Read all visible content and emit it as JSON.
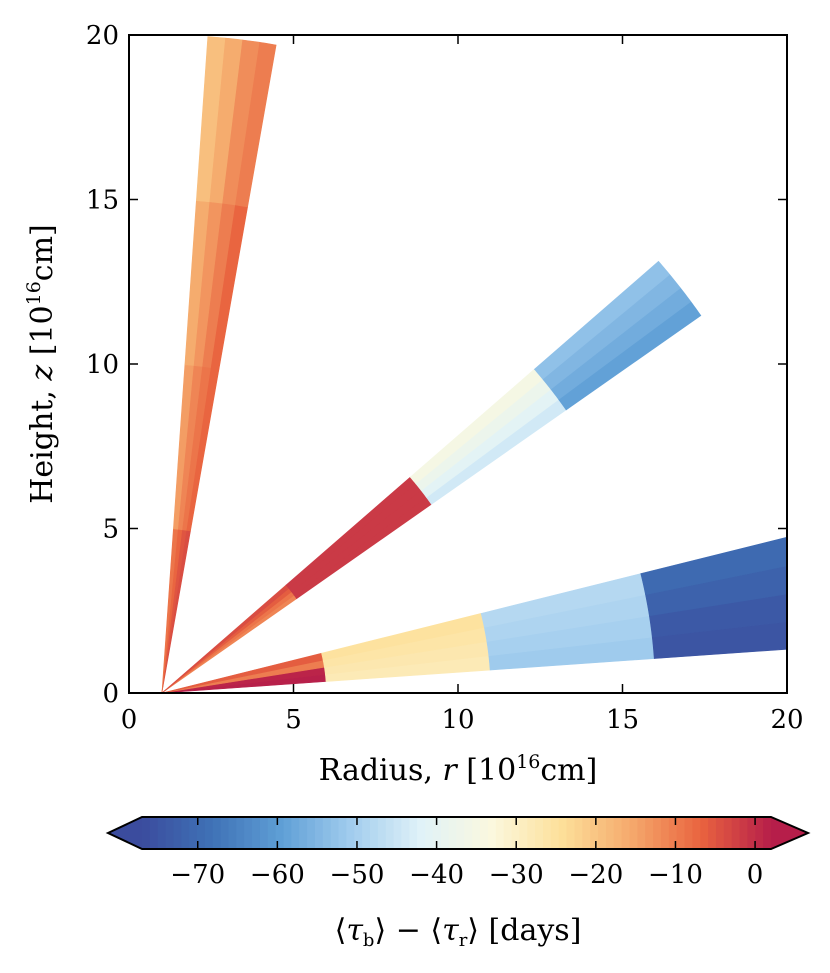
{
  "chart_data": {
    "type": "heatmap",
    "subtype": "wedge-map",
    "xlabel": {
      "prefix": "Radius, ",
      "var": "r",
      "unit_open": " [10",
      "exp": "16",
      "unit_close": "cm]"
    },
    "ylabel": {
      "prefix": "Height, ",
      "var": "z",
      "unit_open": " [10",
      "exp": "16",
      "unit_close": "cm]"
    },
    "xlim": [
      0,
      20
    ],
    "ylim": [
      0,
      20
    ],
    "xticks": [
      0,
      5,
      10,
      15,
      20
    ],
    "yticks": [
      0,
      5,
      10,
      15,
      20
    ],
    "origin": [
      1,
      0
    ],
    "wedges": [
      {
        "name": "wedge-steep",
        "theta_deg": [
          80,
          86
        ],
        "radial_edges": [
          0,
          5,
          10,
          15,
          20
        ],
        "angular_bins": 4,
        "values": [
          [
            -4,
            -5,
            -7,
            -9
          ],
          [
            -7,
            -9,
            -11,
            -14
          ],
          [
            -7,
            -10,
            -13,
            -16
          ],
          [
            -10,
            -12,
            -16,
            -19
          ]
        ]
      },
      {
        "name": "wedge-mid",
        "theta_deg": [
          35,
          41
        ],
        "radial_edges": [
          0,
          5,
          10,
          15,
          20
        ],
        "angular_bins": 4,
        "values": [
          [
            -11,
            -9,
            -6,
            -4
          ],
          [
            -1.5,
            -1.5,
            -1.5,
            -1.5
          ],
          [
            -44,
            -41,
            -38,
            -35
          ],
          [
            -59,
            -57,
            -55,
            -53
          ]
        ]
      },
      {
        "name": "wedge-shallow",
        "theta_deg": [
          4,
          14
        ],
        "radial_edges": [
          0,
          5,
          10,
          15,
          20
        ],
        "angular_bins": 4,
        "values": [
          [
            1.8,
            1.2,
            -10,
            -6
          ],
          [
            -28,
            -27,
            -26,
            -25
          ],
          [
            -51,
            -50,
            -49,
            -48
          ],
          [
            -75,
            -74,
            -72,
            -70
          ]
        ]
      }
    ],
    "colorbar": {
      "min": -77,
      "max": 2,
      "ticks": [
        -70,
        -60,
        -50,
        -40,
        -30,
        -20,
        -10,
        0
      ],
      "extend": "both",
      "label": {
        "open": "⟨",
        "tau": "τ",
        "sub_b": "b",
        "minus": "⟩ − ⟨",
        "sub_r": "r",
        "close": "⟩",
        "unit": " [days]"
      },
      "colors": [
        "#3b4c9e",
        "#3f72b6",
        "#5f9fd6",
        "#a2cdee",
        "#e0f2f8",
        "#fbf8de",
        "#fde09a",
        "#f5a96c",
        "#e9633f",
        "#b61e4a"
      ]
    }
  }
}
